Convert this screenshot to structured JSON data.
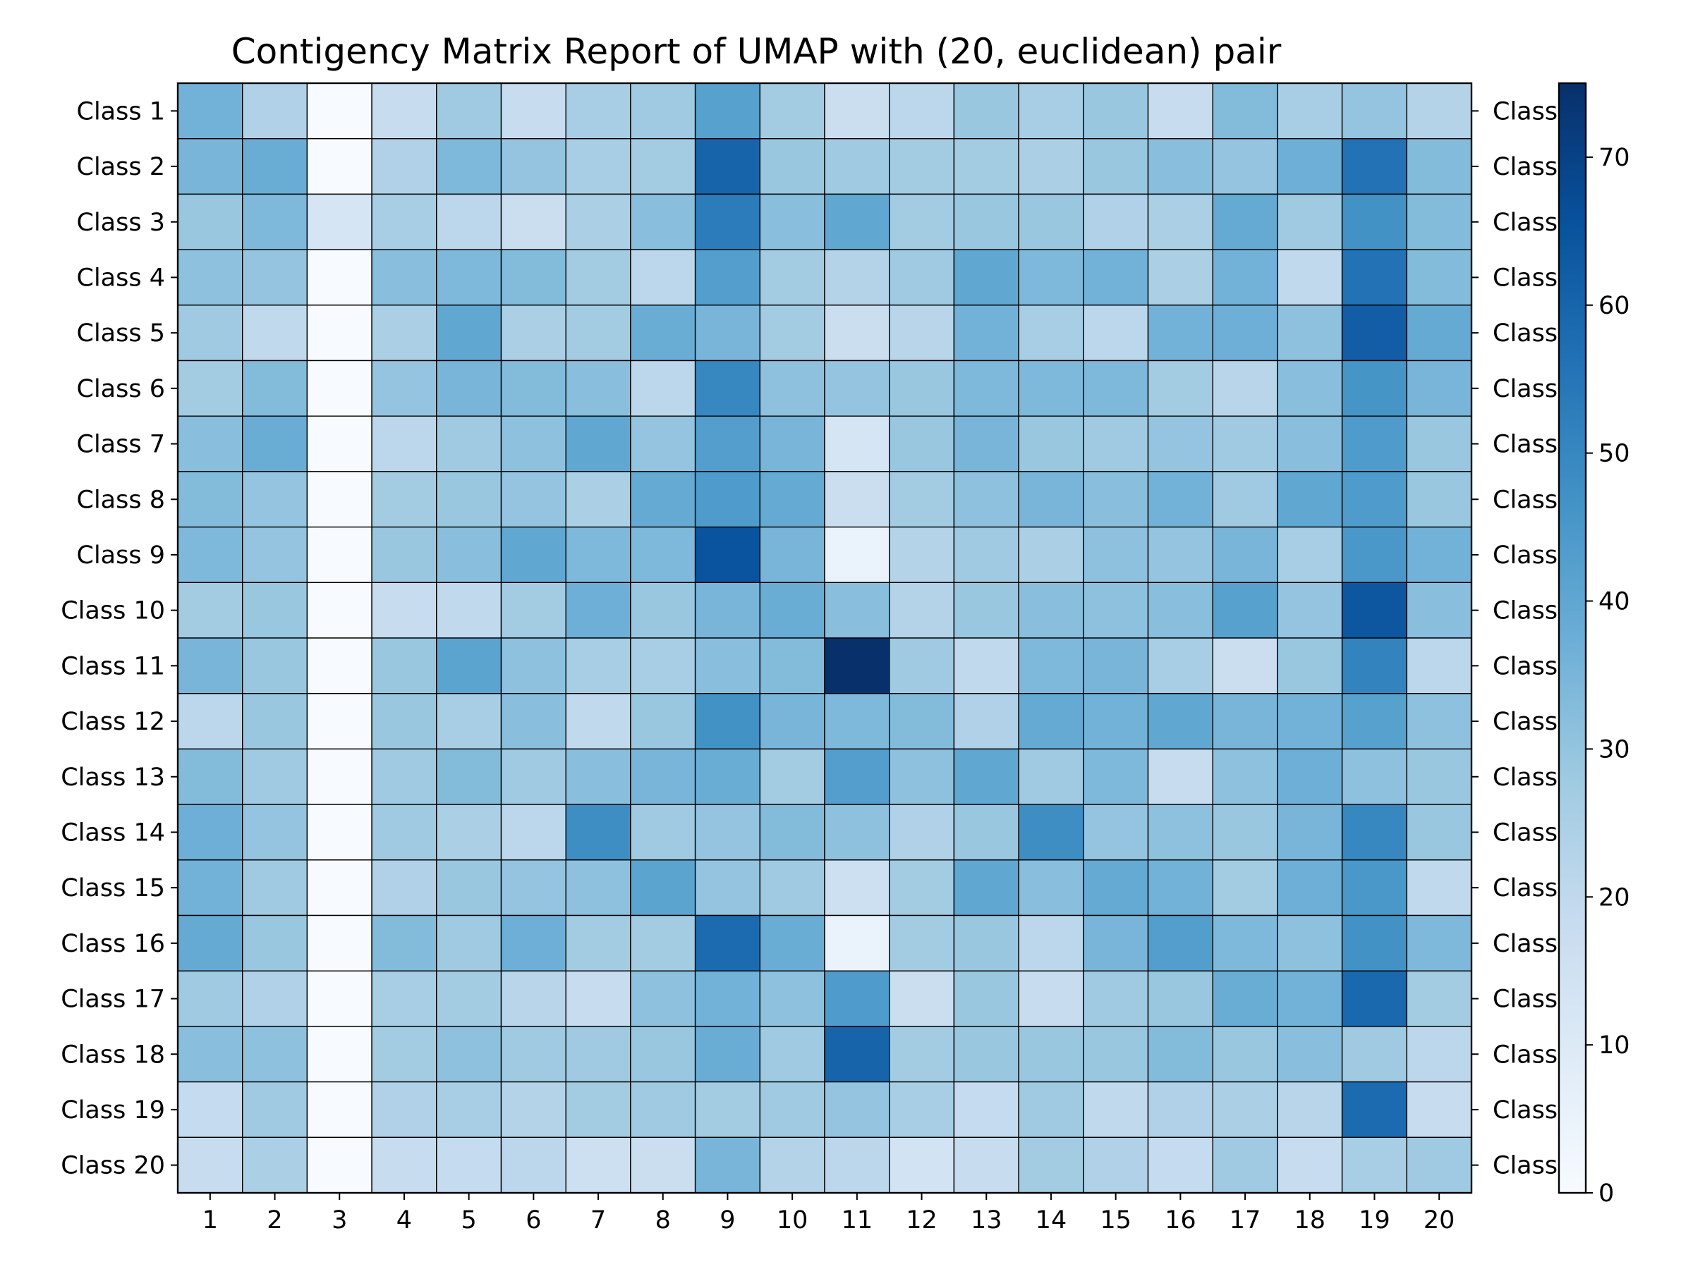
{
  "chart_data": {
    "type": "heatmap",
    "title": "Contigency Matrix Report of UMAP with (20, euclidean) pair",
    "row_labels": [
      "Class 1",
      "Class 2",
      "Class 3",
      "Class 4",
      "Class 5",
      "Class 6",
      "Class 7",
      "Class 8",
      "Class 9",
      "Class 10",
      "Class 11",
      "Class 12",
      "Class 13",
      "Class 14",
      "Class 15",
      "Class 16",
      "Class 17",
      "Class 18",
      "Class 19",
      "Class 20"
    ],
    "right_labels": [
      "Class",
      "Class",
      "Class",
      "Class",
      "Class",
      "Class",
      "Class",
      "Class",
      "Class",
      "Class",
      "Class",
      "Class",
      "Class",
      "Class",
      "Class",
      "Class",
      "Class",
      "Class",
      "Class",
      "Class"
    ],
    "col_labels": [
      "1",
      "2",
      "3",
      "4",
      "5",
      "6",
      "7",
      "8",
      "9",
      "10",
      "11",
      "12",
      "13",
      "14",
      "15",
      "16",
      "17",
      "18",
      "19",
      "20"
    ],
    "values": [
      [
        36,
        24,
        0,
        18,
        28,
        18,
        26,
        28,
        42,
        27,
        17,
        21,
        29,
        26,
        29,
        18,
        33,
        26,
        30,
        23
      ],
      [
        35,
        38,
        0,
        24,
        34,
        30,
        26,
        27,
        60,
        29,
        28,
        27,
        27,
        25,
        29,
        32,
        30,
        37,
        56,
        33
      ],
      [
        29,
        34,
        13,
        26,
        21,
        17,
        25,
        32,
        53,
        32,
        40,
        27,
        29,
        29,
        24,
        25,
        39,
        28,
        47,
        33
      ],
      [
        31,
        30,
        0,
        32,
        34,
        33,
        27,
        21,
        43,
        27,
        23,
        28,
        40,
        34,
        36,
        25,
        36,
        20,
        56,
        33
      ],
      [
        28,
        20,
        0,
        25,
        40,
        25,
        27,
        38,
        35,
        27,
        17,
        22,
        36,
        26,
        21,
        36,
        37,
        31,
        62,
        39
      ],
      [
        27,
        33,
        0,
        30,
        35,
        33,
        32,
        21,
        50,
        31,
        30,
        29,
        34,
        34,
        34,
        27,
        22,
        32,
        46,
        35
      ],
      [
        32,
        38,
        0,
        21,
        28,
        31,
        40,
        30,
        43,
        35,
        13,
        29,
        35,
        29,
        28,
        30,
        28,
        32,
        44,
        29
      ],
      [
        33,
        30,
        0,
        27,
        29,
        30,
        25,
        39,
        44,
        39,
        17,
        27,
        31,
        35,
        32,
        36,
        28,
        40,
        44,
        29
      ],
      [
        34,
        30,
        0,
        29,
        32,
        40,
        34,
        34,
        65,
        35,
        5,
        23,
        28,
        25,
        31,
        30,
        35,
        26,
        45,
        36
      ],
      [
        27,
        29,
        0,
        18,
        20,
        27,
        37,
        29,
        35,
        38,
        32,
        23,
        29,
        32,
        31,
        32,
        42,
        30,
        64,
        32
      ],
      [
        35,
        29,
        0,
        29,
        41,
        31,
        26,
        26,
        32,
        33,
        75,
        28,
        20,
        34,
        35,
        26,
        17,
        29,
        51,
        21
      ],
      [
        21,
        29,
        0,
        29,
        26,
        32,
        20,
        29,
        47,
        35,
        34,
        33,
        24,
        39,
        36,
        40,
        35,
        36,
        42,
        31
      ],
      [
        33,
        28,
        0,
        28,
        33,
        28,
        32,
        35,
        38,
        27,
        43,
        31,
        40,
        28,
        34,
        18,
        31,
        37,
        31,
        29
      ],
      [
        37,
        30,
        0,
        28,
        25,
        21,
        48,
        28,
        30,
        33,
        31,
        24,
        29,
        48,
        30,
        31,
        29,
        35,
        50,
        29
      ],
      [
        36,
        28,
        0,
        24,
        29,
        30,
        31,
        41,
        30,
        28,
        16,
        27,
        40,
        32,
        39,
        36,
        27,
        37,
        45,
        20
      ],
      [
        39,
        29,
        0,
        33,
        28,
        37,
        27,
        27,
        58,
        38,
        5,
        27,
        29,
        21,
        35,
        43,
        34,
        31,
        47,
        34
      ],
      [
        28,
        24,
        0,
        26,
        27,
        22,
        18,
        31,
        36,
        31,
        44,
        17,
        29,
        18,
        28,
        29,
        38,
        36,
        59,
        27
      ],
      [
        32,
        31,
        0,
        27,
        31,
        28,
        28,
        29,
        38,
        28,
        60,
        27,
        29,
        29,
        29,
        33,
        29,
        32,
        28,
        21
      ],
      [
        19,
        28,
        0,
        24,
        26,
        23,
        27,
        28,
        27,
        28,
        30,
        26,
        19,
        28,
        20,
        24,
        25,
        22,
        58,
        18
      ],
      [
        18,
        25,
        0,
        18,
        19,
        21,
        16,
        17,
        35,
        23,
        21,
        14,
        18,
        27,
        24,
        19,
        28,
        18,
        26,
        28
      ]
    ],
    "colorbar": {
      "min": 0,
      "max": 75,
      "ticks": [
        "0",
        "10",
        "20",
        "30",
        "40",
        "50",
        "60",
        "70"
      ],
      "colormap": "Blues"
    },
    "xlabel": "",
    "ylabel": "",
    "grid": false
  }
}
